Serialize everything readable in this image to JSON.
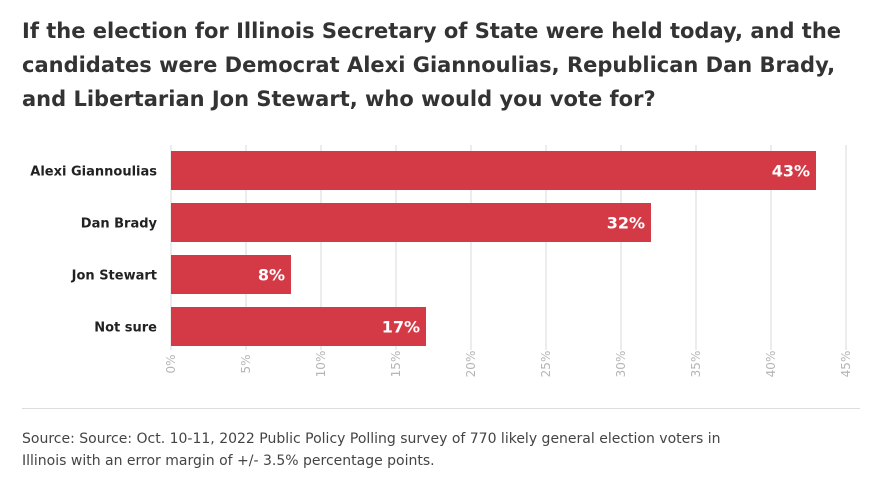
{
  "chart_data": {
    "type": "bar",
    "orientation": "horizontal",
    "title_lines": [
      "If the election for Illinois Secretary of State were held today, and the",
      "candidates were Democrat Alexi Giannoulias, Republican Dan Brady,",
      "and Libertarian Jon Stewart, who would you vote for?"
    ],
    "categories": [
      "Alexi Giannoulias",
      "Dan Brady",
      "Jon Stewart",
      "Not sure"
    ],
    "values": [
      43,
      32,
      8,
      17
    ],
    "value_labels": [
      "43%",
      "32%",
      "8%",
      "17%"
    ],
    "xlim": [
      0,
      45
    ],
    "ticks": [
      0,
      5,
      10,
      15,
      20,
      25,
      30,
      35,
      40,
      45
    ],
    "tick_labels": [
      "0%",
      "5%",
      "10%",
      "15%",
      "20%",
      "25%",
      "30%",
      "35%",
      "40%",
      "45%"
    ],
    "xlabel": "",
    "ylabel": "",
    "grid": true,
    "colors": {
      "bar": "#d43a46",
      "bar_label": "#ffffff",
      "grid": "#d9d9d9",
      "tick": "#b5b5b5"
    }
  },
  "source_lines": [
    "Source: Source: Oct. 10-11, 2022 Public Policy Polling survey of 770 likely general election voters in",
    "Illinois with an error margin of +/- 3.5% percentage points."
  ]
}
